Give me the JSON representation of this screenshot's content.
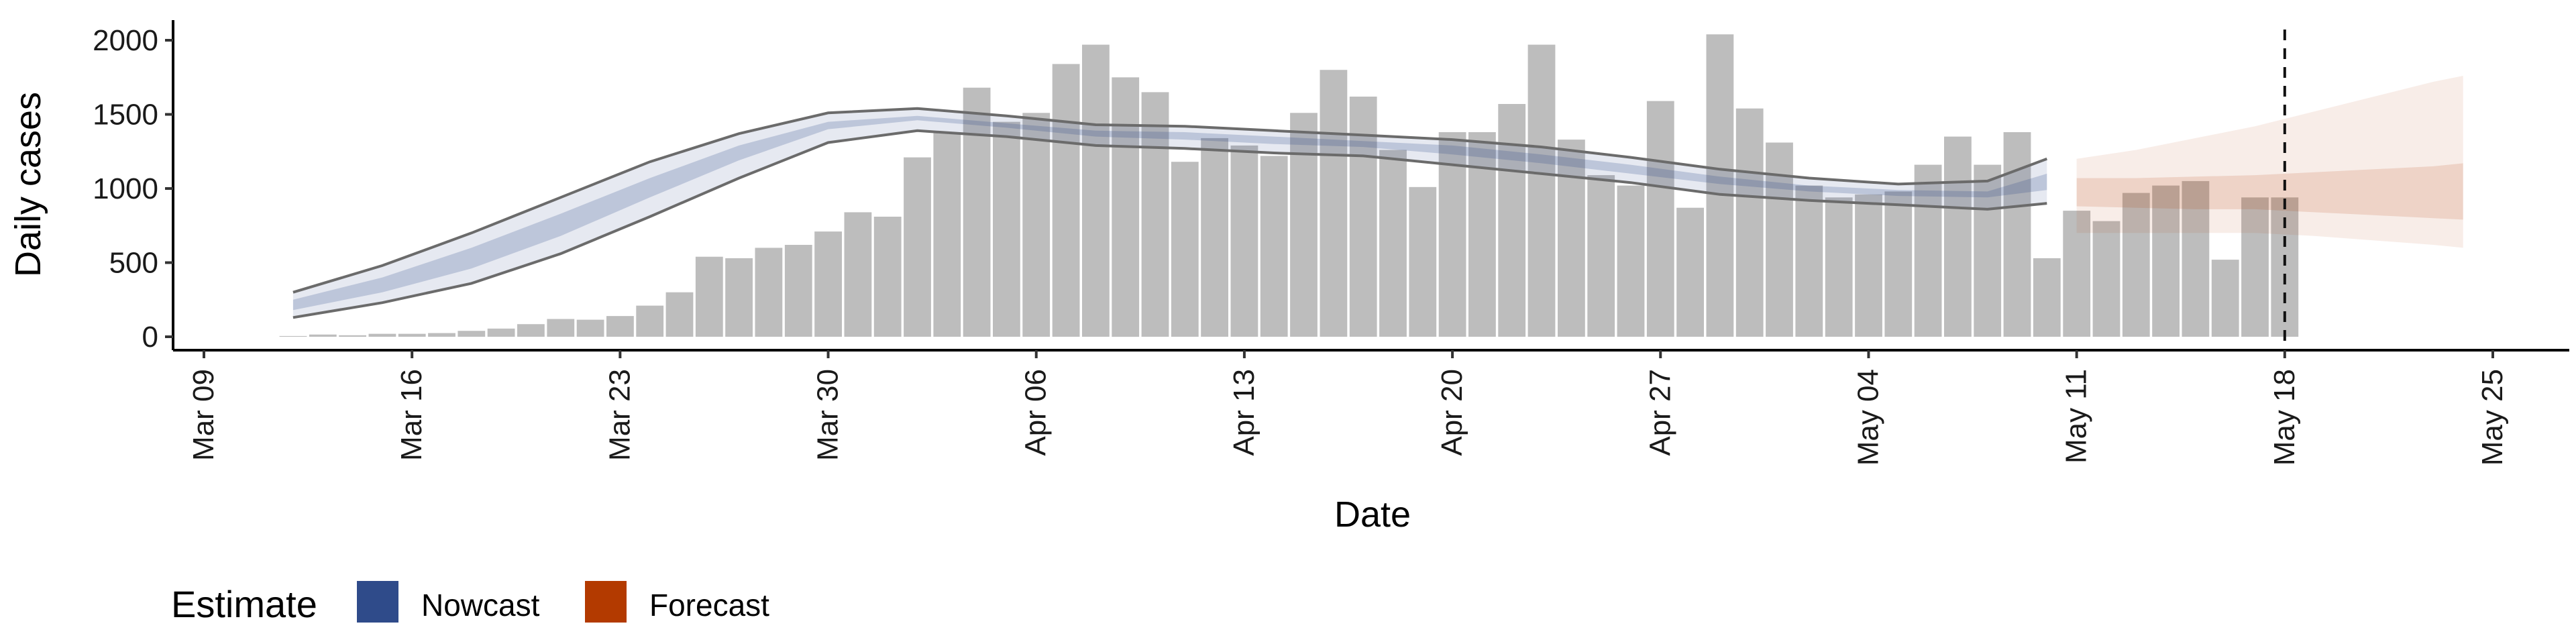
{
  "chart_data": {
    "type": "bar",
    "title": "",
    "xlabel": "Date",
    "ylabel": "Daily cases",
    "ylim": [
      0,
      2100
    ],
    "y_ticks": [
      0,
      500,
      1000,
      1500,
      2000
    ],
    "x_ticks": [
      "Mar 09",
      "Mar 16",
      "Mar 23",
      "Mar 30",
      "Apr 06",
      "Apr 13",
      "Apr 20",
      "Apr 27",
      "May 04",
      "May 11",
      "May 18",
      "May 25"
    ],
    "x_range": [
      "2020-03-08",
      "2020-05-27"
    ],
    "grid": false,
    "legend_position": "bottom-left",
    "reference_line": {
      "date": "2020-05-18",
      "style": "dashed"
    },
    "colors": {
      "bars": "#bdbdbd",
      "nowcast": "#2f4b8a",
      "forecast": "#b33a00",
      "lines": "#6b6b6b"
    },
    "reported_cases": {
      "dates": [
        "2020-03-12",
        "2020-03-13",
        "2020-03-14",
        "2020-03-15",
        "2020-03-16",
        "2020-03-17",
        "2020-03-18",
        "2020-03-19",
        "2020-03-20",
        "2020-03-21",
        "2020-03-22",
        "2020-03-23",
        "2020-03-24",
        "2020-03-25",
        "2020-03-26",
        "2020-03-27",
        "2020-03-28",
        "2020-03-29",
        "2020-03-30",
        "2020-03-31",
        "2020-04-01",
        "2020-04-02",
        "2020-04-03",
        "2020-04-04",
        "2020-04-05",
        "2020-04-06",
        "2020-04-07",
        "2020-04-08",
        "2020-04-09",
        "2020-04-10",
        "2020-04-11",
        "2020-04-12",
        "2020-04-13",
        "2020-04-14",
        "2020-04-15",
        "2020-04-16",
        "2020-04-17",
        "2020-04-18",
        "2020-04-19",
        "2020-04-20",
        "2020-04-21",
        "2020-04-22",
        "2020-04-23",
        "2020-04-24",
        "2020-04-25",
        "2020-04-26",
        "2020-04-27",
        "2020-04-28",
        "2020-04-29",
        "2020-04-30",
        "2020-05-01",
        "2020-05-02",
        "2020-05-03",
        "2020-05-04",
        "2020-05-05",
        "2020-05-06",
        "2020-05-07",
        "2020-05-08",
        "2020-05-09",
        "2020-05-10",
        "2020-05-11",
        "2020-05-12",
        "2020-05-13",
        "2020-05-14",
        "2020-05-15",
        "2020-05-16",
        "2020-05-17",
        "2020-05-18"
      ],
      "values": [
        5,
        15,
        10,
        20,
        20,
        25,
        40,
        55,
        85,
        120,
        115,
        140,
        210,
        300,
        540,
        530,
        600,
        620,
        710,
        840,
        810,
        1210,
        1380,
        1680,
        1450,
        1510,
        1840,
        1970,
        1750,
        1650,
        1180,
        1340,
        1290,
        1220,
        1510,
        1800,
        1620,
        1260,
        1010,
        1380,
        1380,
        1570,
        1970,
        1330,
        1090,
        1020,
        1590,
        870,
        2040,
        1540,
        1310,
        1020,
        940,
        960,
        980,
        1160,
        1350,
        1160,
        1380,
        530,
        850,
        780,
        970,
        1020,
        1050,
        520,
        940,
        940
      ]
    },
    "nowcast": {
      "dates": [
        "2020-03-12",
        "2020-03-15",
        "2020-03-18",
        "2020-03-21",
        "2020-03-24",
        "2020-03-27",
        "2020-03-30",
        "2020-04-02",
        "2020-04-05",
        "2020-04-08",
        "2020-04-11",
        "2020-04-14",
        "2020-04-17",
        "2020-04-20",
        "2020-04-23",
        "2020-04-26",
        "2020-04-29",
        "2020-05-02",
        "2020-05-05",
        "2020-05-08",
        "2020-05-10"
      ],
      "lower_90": [
        130,
        230,
        360,
        560,
        810,
        1070,
        1310,
        1390,
        1350,
        1290,
        1270,
        1240,
        1220,
        1160,
        1100,
        1040,
        960,
        920,
        890,
        860,
        900
      ],
      "upper_90": [
        300,
        480,
        700,
        940,
        1180,
        1370,
        1510,
        1540,
        1490,
        1430,
        1420,
        1390,
        1360,
        1330,
        1280,
        1210,
        1130,
        1070,
        1030,
        1050,
        1200
      ],
      "lower_50": [
        180,
        300,
        460,
        680,
        940,
        1190,
        1400,
        1460,
        1410,
        1350,
        1330,
        1300,
        1280,
        1230,
        1170,
        1100,
        1030,
        980,
        950,
        940,
        990
      ],
      "upper_50": [
        250,
        400,
        600,
        830,
        1070,
        1290,
        1450,
        1490,
        1440,
        1390,
        1380,
        1350,
        1320,
        1290,
        1230,
        1160,
        1080,
        1020,
        990,
        980,
        1100
      ]
    },
    "forecast": {
      "dates": [
        "2020-05-11",
        "2020-05-13",
        "2020-05-15",
        "2020-05-17",
        "2020-05-19",
        "2020-05-21",
        "2020-05-23",
        "2020-05-24"
      ],
      "lower_90": [
        700,
        700,
        700,
        700,
        680,
        650,
        620,
        600
      ],
      "upper_90": [
        1200,
        1260,
        1340,
        1420,
        1520,
        1620,
        1720,
        1760
      ],
      "lower_50": [
        880,
        870,
        860,
        860,
        840,
        820,
        800,
        790
      ],
      "upper_50": [
        1070,
        1070,
        1080,
        1090,
        1110,
        1130,
        1150,
        1170
      ]
    },
    "legend": {
      "title": "Estimate",
      "items": [
        {
          "label": "Nowcast",
          "color": "#2f4b8a"
        },
        {
          "label": "Forecast",
          "color": "#b33a00"
        }
      ]
    }
  }
}
